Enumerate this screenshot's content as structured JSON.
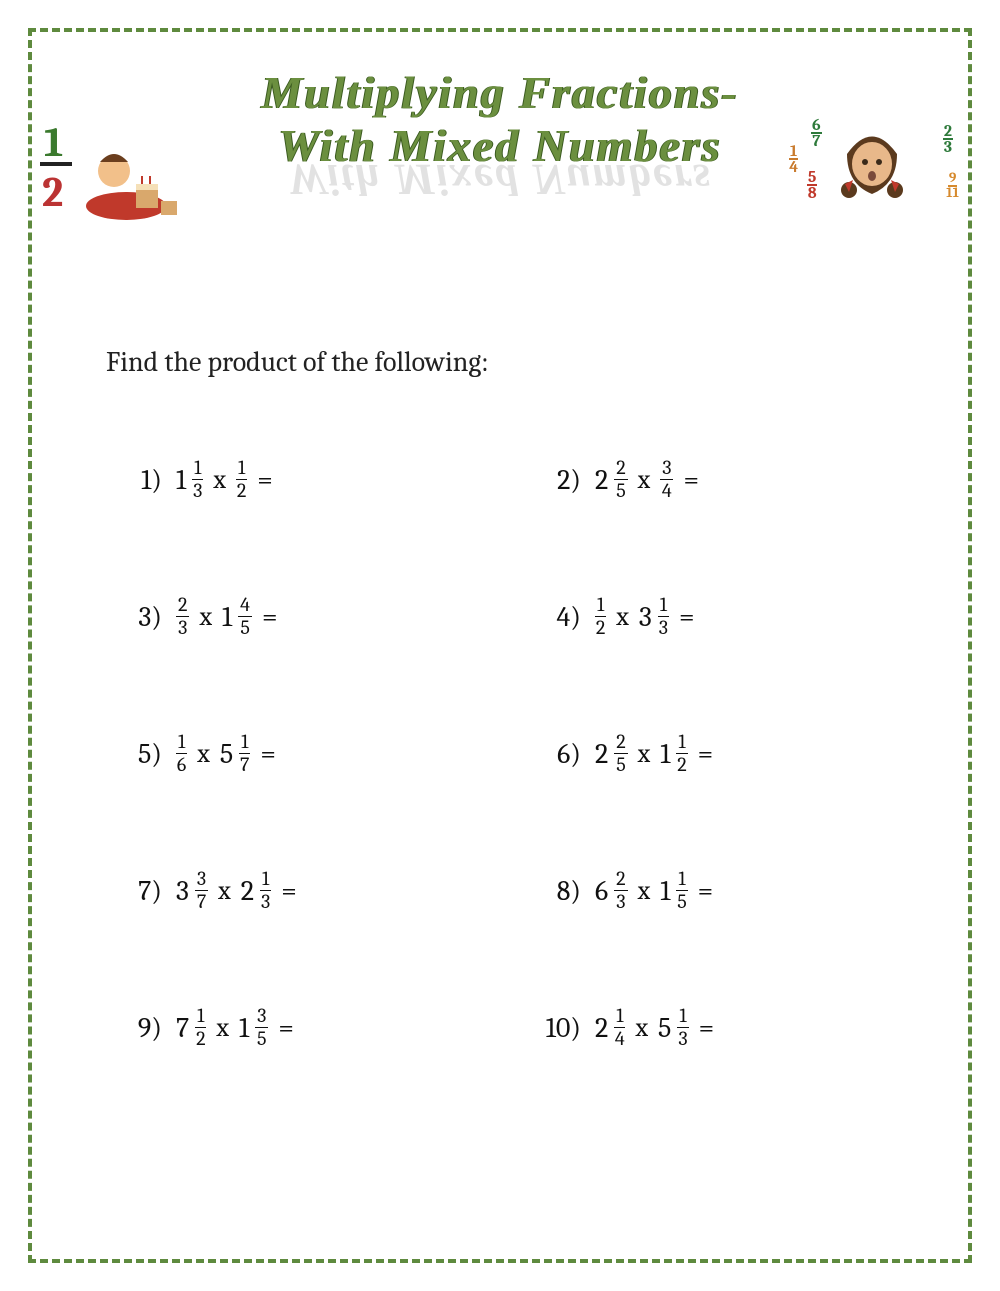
{
  "border_color": "#5e8a3e",
  "background_color": "#ffffff",
  "title": {
    "line1": "Multiplying Fractions-",
    "line2": "With Mixed Numbers",
    "color": "#6b8f3f",
    "font": "cursive",
    "fontsize": 46,
    "reflection_color": "#d0d0d0"
  },
  "clipart_left": {
    "description": "boy-eating-cake",
    "big_fraction": {
      "num": "1",
      "den": "2",
      "num_color": "#3b7a2e",
      "den_color": "#b33"
    }
  },
  "clipart_right": {
    "description": "girl-face",
    "fractions": [
      {
        "num": "1",
        "den": "4",
        "color": "#c97b2e"
      },
      {
        "num": "6",
        "den": "7",
        "color": "#2e7a3b"
      },
      {
        "num": "5",
        "den": "8",
        "color": "#c0392b"
      },
      {
        "num": "2",
        "den": "3",
        "color": "#2e7a3b"
      },
      {
        "num": "9",
        "den": "11",
        "color": "#d68a2e"
      }
    ]
  },
  "instruction": "Find the product of the following:",
  "instruction_fontsize": 28,
  "problem_fontsize": 28,
  "fraction_fontsize": 20,
  "text_color": "#111111",
  "problems": [
    {
      "n": "1)",
      "a": {
        "whole": "1",
        "num": "1",
        "den": "3"
      },
      "b": {
        "whole": "",
        "num": "1",
        "den": "2"
      }
    },
    {
      "n": "2)",
      "a": {
        "whole": "2",
        "num": "2",
        "den": "5"
      },
      "b": {
        "whole": "",
        "num": "3",
        "den": "4"
      }
    },
    {
      "n": "3)",
      "a": {
        "whole": "",
        "num": "2",
        "den": "3"
      },
      "b": {
        "whole": "1",
        "num": "4",
        "den": "5"
      }
    },
    {
      "n": "4)",
      "a": {
        "whole": "",
        "num": "1",
        "den": "2"
      },
      "b": {
        "whole": "3",
        "num": "1",
        "den": "3"
      }
    },
    {
      "n": "5)",
      "a": {
        "whole": "",
        "num": "1",
        "den": "6"
      },
      "b": {
        "whole": "5",
        "num": "1",
        "den": "7"
      }
    },
    {
      "n": "6)",
      "a": {
        "whole": "2",
        "num": "2",
        "den": "5"
      },
      "b": {
        "whole": "1",
        "num": "1",
        "den": "2"
      }
    },
    {
      "n": "7)",
      "a": {
        "whole": "3",
        "num": "3",
        "den": "7"
      },
      "b": {
        "whole": "2",
        "num": "1",
        "den": "3"
      }
    },
    {
      "n": "8)",
      "a": {
        "whole": "6",
        "num": "2",
        "den": "3"
      },
      "b": {
        "whole": "1",
        "num": "1",
        "den": "5"
      }
    },
    {
      "n": "9)",
      "a": {
        "whole": "7",
        "num": "1",
        "den": "2"
      },
      "b": {
        "whole": "1",
        "num": "3",
        "den": "5"
      }
    },
    {
      "n": "10)",
      "a": {
        "whole": "2",
        "num": "1",
        "den": "4"
      },
      "b": {
        "whole": "5",
        "num": "1",
        "den": "3"
      }
    }
  ],
  "multiply_symbol": "x",
  "equals_symbol": "="
}
